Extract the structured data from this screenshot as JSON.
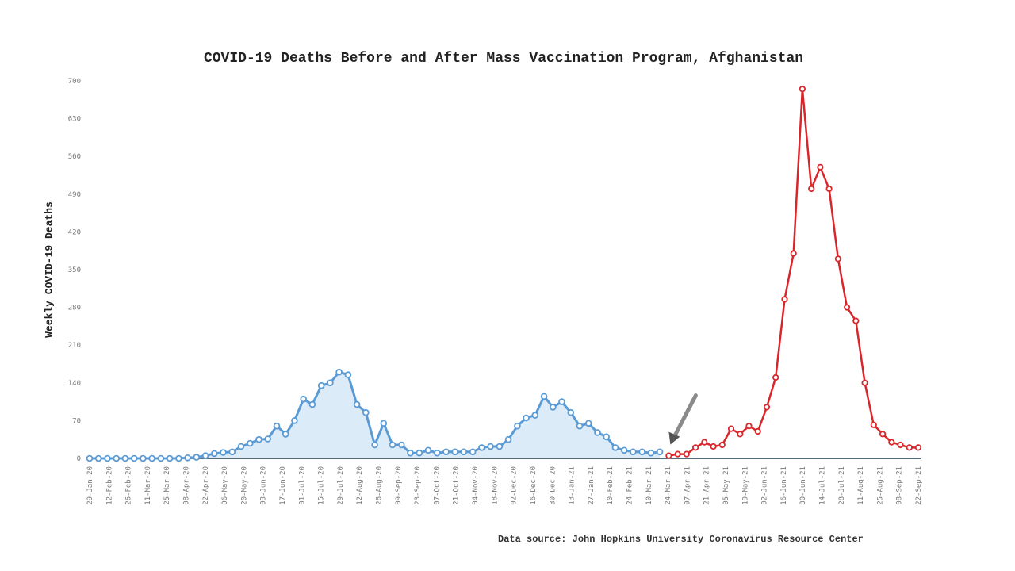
{
  "chart_data": {
    "type": "line",
    "title": "COVID-19 Deaths Before and After Mass Vaccination Program, Afghanistan",
    "ylabel": "Weekly COVID-19 Deaths",
    "xlabel": "",
    "source": "Data source: John Hopkins University Coronavirus Resource Center",
    "ylim": [
      0,
      700
    ],
    "y_ticks": [
      "0",
      "70",
      "140",
      "210",
      "280",
      "350",
      "420",
      "490",
      "560",
      "630",
      "700"
    ],
    "x_tick_labels": [
      "29-Jan-20",
      "12-Feb-20",
      "26-Feb-20",
      "11-Mar-20",
      "25-Mar-20",
      "08-Apr-20",
      "22-Apr-20",
      "06-May-20",
      "20-May-20",
      "03-Jun-20",
      "17-Jun-20",
      "01-Jul-20",
      "15-Jul-20",
      "29-Jul-20",
      "12-Aug-20",
      "26-Aug-20",
      "09-Sep-20",
      "23-Sep-20",
      "07-Oct-20",
      "21-Oct-20",
      "04-Nov-20",
      "18-Nov-20",
      "02-Dec-20",
      "16-Dec-20",
      "30-Dec-20",
      "13-Jan-21",
      "27-Jan-21",
      "10-Feb-21",
      "24-Feb-21",
      "10-Mar-21",
      "24-Mar-21",
      "07-Apr-21",
      "21-Apr-21",
      "05-May-21",
      "19-May-21",
      "02-Jun-21",
      "16-Jun-21",
      "30-Jun-21",
      "14-Jul-21",
      "28-Jul-21",
      "11-Aug-21",
      "25-Aug-21",
      "08-Sep-21",
      "22-Sep-21"
    ],
    "grid": false,
    "series": [
      {
        "color": "#5b9bd5",
        "area_color": "#dcebf8",
        "values": [
          0,
          0,
          0,
          0,
          0,
          0,
          0,
          0,
          0,
          0,
          0,
          1,
          2,
          5,
          9,
          11,
          12,
          22,
          28,
          35,
          36,
          60,
          45,
          70,
          110,
          100,
          135,
          140,
          160,
          155,
          100,
          85,
          25,
          65,
          25,
          25,
          10,
          10,
          15,
          10,
          12,
          12,
          12,
          12,
          20,
          22,
          22,
          35,
          60,
          75,
          80,
          115,
          95,
          105,
          85,
          60,
          65,
          48,
          40,
          20,
          15,
          12,
          12,
          10,
          12
        ]
      },
      {
        "color": "#d9262b",
        "values": [
          5,
          8,
          8,
          20,
          30,
          22,
          25,
          55,
          45,
          60,
          50,
          95,
          150,
          295,
          380,
          685,
          500,
          540,
          500,
          370,
          280,
          255,
          140,
          62,
          45,
          30,
          25,
          20,
          20
        ]
      }
    ],
    "annotation": "vaccination start arrow"
  }
}
